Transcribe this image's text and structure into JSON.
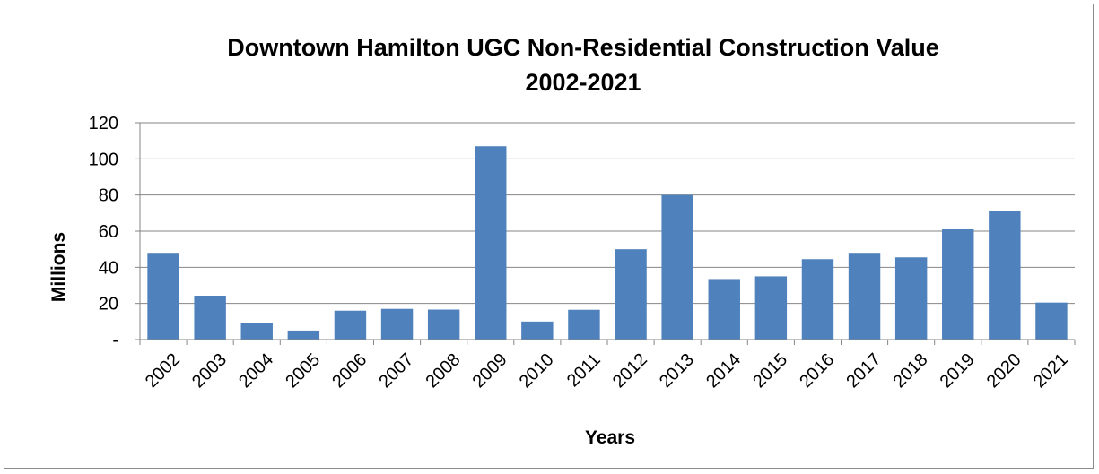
{
  "chart_data": {
    "type": "bar",
    "title_line1": "Downtown Hamilton UGC Non-Residential Construction Value",
    "title_line2": "2002-2021",
    "xlabel": "Years",
    "ylabel": "Millions",
    "ylim": [
      0,
      120
    ],
    "y_ticks": [
      {
        "value": 0,
        "label": "-"
      },
      {
        "value": 20,
        "label": "20"
      },
      {
        "value": 40,
        "label": "40"
      },
      {
        "value": 60,
        "label": "60"
      },
      {
        "value": 80,
        "label": "80"
      },
      {
        "value": 100,
        "label": "100"
      },
      {
        "value": 120,
        "label": "120"
      }
    ],
    "categories": [
      "2002",
      "2003",
      "2004",
      "2005",
      "2006",
      "2007",
      "2008",
      "2009",
      "2010",
      "2011",
      "2012",
      "2013",
      "2014",
      "2015",
      "2016",
      "2017",
      "2018",
      "2019",
      "2020",
      "2021"
    ],
    "values": [
      48,
      24.3,
      9,
      5,
      16,
      17,
      16.6,
      107,
      10,
      16.5,
      50,
      80,
      33.5,
      35,
      44.5,
      48,
      45.5,
      61,
      71,
      20.5
    ],
    "bar_color": "#4f81bd",
    "grid": true,
    "legend": "none"
  }
}
